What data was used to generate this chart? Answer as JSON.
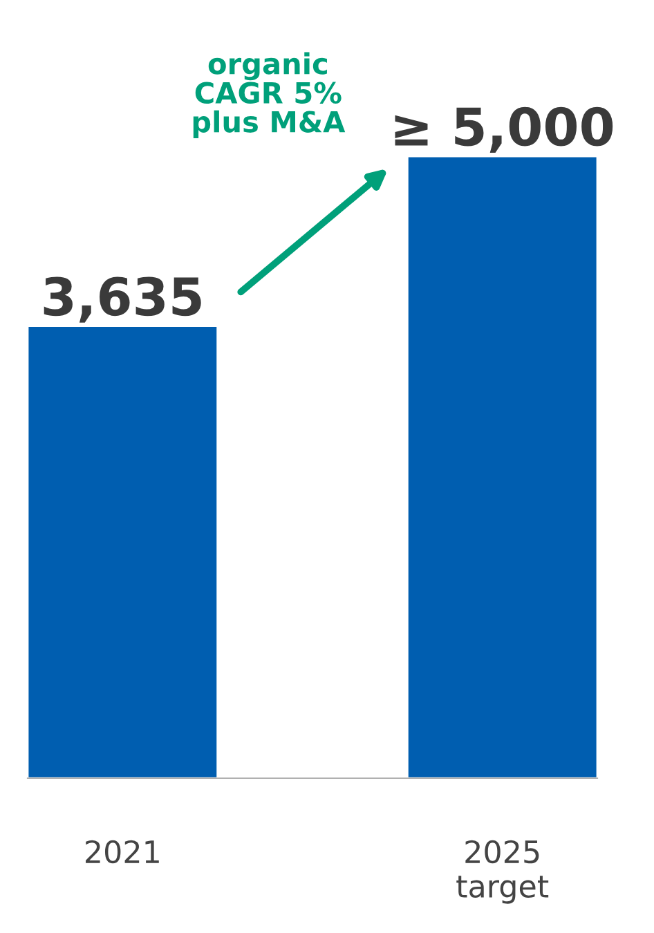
{
  "chart_data": {
    "type": "bar",
    "categories": [
      "2021",
      "2025\ntarget"
    ],
    "values": [
      3635,
      5000
    ],
    "color": "#005eb0",
    "value_labels": [
      "3,635",
      "≥ 5,000"
    ],
    "annotations": [
      "organic\nCAGR 5%\nplus M&A"
    ],
    "grid": false,
    "legend": false
  }
}
